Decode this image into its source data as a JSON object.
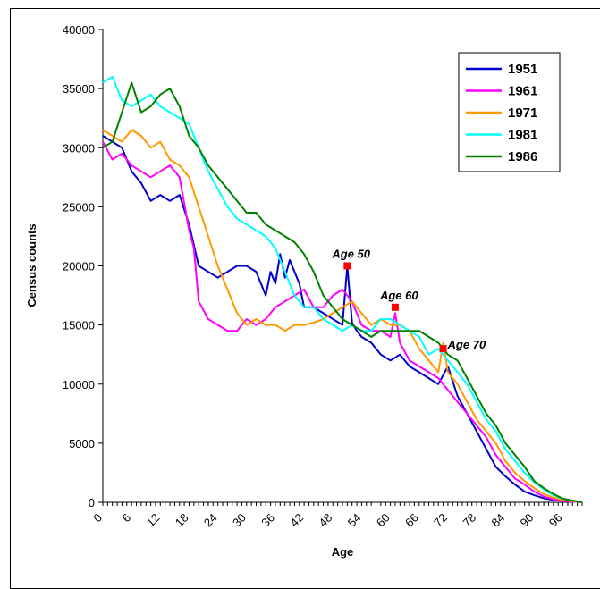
{
  "chart_data": {
    "type": "line",
    "title": "",
    "xlabel": "Age",
    "ylabel": "Census counts",
    "xlim": [
      0,
      100
    ],
    "ylim": [
      0,
      40000
    ],
    "x_ticks": [
      0,
      6,
      12,
      18,
      24,
      30,
      36,
      42,
      48,
      54,
      60,
      66,
      72,
      78,
      84,
      90,
      96
    ],
    "y_ticks": [
      0,
      5000,
      10000,
      15000,
      20000,
      25000,
      30000,
      35000,
      40000
    ],
    "grid": false,
    "legend_position": "top-right",
    "series": [
      {
        "name": "1951",
        "color": "#0000cc",
        "x": [
          0,
          2,
          4,
          6,
          8,
          10,
          12,
          14,
          16,
          18,
          20,
          22,
          24,
          26,
          28,
          30,
          32,
          34,
          35,
          36,
          37,
          38,
          39,
          40,
          41,
          42,
          44,
          46,
          48,
          50,
          51,
          52,
          53,
          54,
          56,
          58,
          60,
          62,
          64,
          66,
          68,
          70,
          72,
          74,
          76,
          78,
          80,
          82,
          84,
          86,
          88,
          90,
          92,
          94,
          96,
          98,
          100
        ],
        "y": [
          31000,
          30500,
          30000,
          28000,
          27000,
          25500,
          26000,
          25500,
          26000,
          23500,
          20000,
          19500,
          19000,
          19500,
          20000,
          20000,
          19500,
          17500,
          19500,
          18500,
          21000,
          19000,
          20500,
          19500,
          18500,
          16500,
          16500,
          16000,
          15500,
          15000,
          20000,
          15200,
          14500,
          14000,
          13500,
          12500,
          12000,
          12500,
          11500,
          11000,
          10500,
          10000,
          11500,
          9000,
          7500,
          6000,
          4500,
          3000,
          2200,
          1500,
          900,
          600,
          350,
          200,
          120,
          60,
          0
        ]
      },
      {
        "name": "1961",
        "color": "#ff00ff",
        "x": [
          0,
          2,
          4,
          6,
          8,
          10,
          12,
          14,
          16,
          18,
          19,
          20,
          22,
          24,
          26,
          28,
          30,
          32,
          34,
          36,
          38,
          40,
          42,
          44,
          46,
          48,
          50,
          52,
          54,
          56,
          58,
          60,
          61,
          62,
          64,
          66,
          68,
          70,
          72,
          74,
          76,
          78,
          80,
          82,
          84,
          86,
          88,
          90,
          92,
          94,
          96,
          98,
          100
        ],
        "y": [
          30500,
          29000,
          29500,
          28500,
          28000,
          27500,
          28000,
          28500,
          27500,
          23000,
          21500,
          17000,
          15500,
          15000,
          14500,
          14500,
          15500,
          15000,
          15500,
          16500,
          17000,
          17500,
          18000,
          16500,
          16500,
          17500,
          18000,
          17000,
          15000,
          14500,
          14500,
          14000,
          16000,
          13500,
          12000,
          11500,
          11000,
          10500,
          9500,
          8500,
          7500,
          6500,
          5500,
          4000,
          3000,
          2000,
          1500,
          900,
          500,
          250,
          100,
          50,
          0
        ]
      },
      {
        "name": "1971",
        "color": "#ff9900",
        "x": [
          0,
          2,
          4,
          6,
          8,
          10,
          12,
          14,
          16,
          18,
          20,
          22,
          24,
          26,
          28,
          30,
          32,
          34,
          36,
          38,
          40,
          42,
          44,
          46,
          48,
          50,
          52,
          54,
          56,
          58,
          60,
          62,
          64,
          66,
          68,
          70,
          71,
          72,
          74,
          76,
          78,
          80,
          82,
          84,
          86,
          88,
          90,
          92,
          94,
          96,
          98,
          100
        ],
        "y": [
          31500,
          31000,
          30500,
          31500,
          31000,
          30000,
          30500,
          29000,
          28500,
          27500,
          25000,
          22500,
          20000,
          18000,
          16000,
          15000,
          15500,
          15000,
          15000,
          14500,
          15000,
          15000,
          15200,
          15500,
          16000,
          16500,
          17000,
          16000,
          15000,
          15500,
          15000,
          15000,
          14500,
          13000,
          12000,
          11000,
          13500,
          11000,
          10000,
          8500,
          7000,
          6000,
          5000,
          3500,
          2500,
          1800,
          1200,
          700,
          400,
          200,
          80,
          0
        ]
      },
      {
        "name": "1981",
        "color": "#00ffff",
        "x": [
          0,
          2,
          4,
          6,
          8,
          10,
          12,
          14,
          16,
          18,
          20,
          22,
          24,
          26,
          28,
          30,
          32,
          34,
          36,
          38,
          40,
          42,
          44,
          46,
          48,
          50,
          52,
          54,
          56,
          58,
          60,
          62,
          64,
          66,
          68,
          70,
          72,
          74,
          76,
          78,
          80,
          82,
          84,
          86,
          88,
          90,
          92,
          94,
          96,
          98,
          100
        ],
        "y": [
          35500,
          36000,
          34000,
          33500,
          34000,
          34500,
          33500,
          33000,
          32500,
          32000,
          30000,
          28000,
          26500,
          25000,
          24000,
          23500,
          23000,
          22500,
          21500,
          19500,
          17500,
          16500,
          16500,
          15500,
          15000,
          14500,
          15000,
          14500,
          14500,
          15500,
          15500,
          15000,
          14500,
          14000,
          12500,
          13000,
          12000,
          11000,
          10000,
          8500,
          7000,
          6000,
          4500,
          3500,
          2500,
          1700,
          1100,
          600,
          300,
          150,
          0
        ]
      },
      {
        "name": "1986",
        "color": "#008000",
        "x": [
          0,
          2,
          4,
          6,
          8,
          10,
          12,
          14,
          16,
          18,
          20,
          22,
          24,
          26,
          28,
          30,
          32,
          34,
          36,
          38,
          40,
          42,
          44,
          46,
          48,
          50,
          52,
          54,
          56,
          58,
          60,
          62,
          64,
          66,
          68,
          70,
          72,
          74,
          76,
          78,
          80,
          82,
          84,
          86,
          88,
          90,
          92,
          94,
          96,
          98,
          100
        ],
        "y": [
          30000,
          30500,
          33000,
          35500,
          33000,
          33500,
          34500,
          35000,
          33500,
          31000,
          30000,
          28500,
          27500,
          26500,
          25500,
          24500,
          24500,
          23500,
          23000,
          22500,
          22000,
          21000,
          19500,
          17500,
          16500,
          15500,
          15000,
          14500,
          14000,
          14500,
          14500,
          14500,
          14500,
          14500,
          14000,
          13500,
          12500,
          12000,
          10500,
          9000,
          7500,
          6500,
          5000,
          4000,
          3000,
          1800,
          1200,
          700,
          300,
          150,
          0
        ]
      }
    ],
    "annotations": [
      {
        "label": "Age 50",
        "x": 51,
        "y": 20000
      },
      {
        "label": "Age 60",
        "x": 61,
        "y": 16500
      },
      {
        "label": "Age 70",
        "x": 71,
        "y": 13000
      }
    ]
  }
}
